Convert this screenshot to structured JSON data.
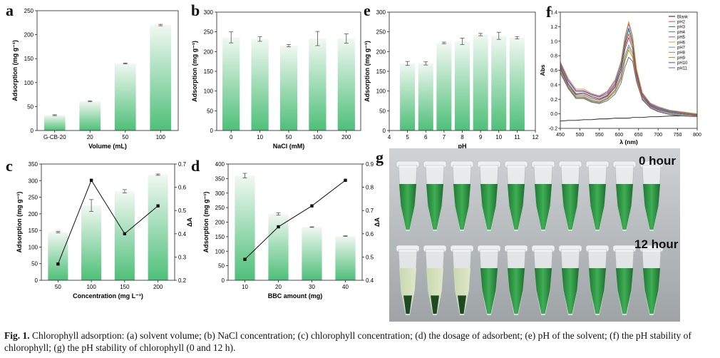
{
  "panels": {
    "a": {
      "letter": "a"
    },
    "b": {
      "letter": "b"
    },
    "c": {
      "letter": "c"
    },
    "d": {
      "letter": "d"
    },
    "e": {
      "letter": "e"
    },
    "f": {
      "letter": "f"
    },
    "g": {
      "letter": "g",
      "label_top": "0 hour",
      "label_bottom": "12 hour"
    }
  },
  "caption": {
    "prefix": "Fig. 1.",
    "text": "Chlorophyll adsorption: (a) solvent volume; (b) NaCl concentration; (c) chlorophyll concentration; (d) the dosage of adsorbent; (e) pH of the solvent; (f) the pH stability of chlorophyll; (g) the pH stability of chlorophyll (0 and 12 h)."
  },
  "colors": {
    "bar_top": "#f1f8f2",
    "bar_bottom": "#4fbf79",
    "line": "#111111"
  },
  "chart_data": [
    {
      "id": "a",
      "type": "bar",
      "categories": [
        "G-CB-20",
        "20",
        "50",
        "100"
      ],
      "values": [
        32,
        61,
        140,
        220
      ],
      "errors": [
        1,
        1,
        1,
        1.5
      ],
      "xlabel": "Volume (mL)",
      "ylabel": "Adsorption (mg g⁻¹)",
      "ylim": [
        0,
        250
      ],
      "yticks": [
        0,
        50,
        100,
        150,
        200,
        250
      ]
    },
    {
      "id": "b",
      "type": "bar",
      "categories": [
        "0",
        "10",
        "50",
        "100",
        "200"
      ],
      "values": [
        236,
        232,
        215,
        233,
        233
      ],
      "errors": [
        14,
        6,
        3,
        18,
        12
      ],
      "xlabel": "NaCl (mM)",
      "ylabel": "Adsorption (mg g⁻¹)",
      "ylim": [
        0,
        300
      ],
      "yticks": [
        0,
        50,
        100,
        150,
        200,
        250,
        300
      ]
    },
    {
      "id": "c",
      "type": "bar",
      "categories": [
        "50",
        "100",
        "150",
        "200"
      ],
      "values": [
        145,
        225,
        268,
        318
      ],
      "errors": [
        2,
        18,
        5,
        2
      ],
      "line_values": [
        0.27,
        0.63,
        0.4,
        0.52
      ],
      "xlabel": "Concentration (mg L⁻¹)",
      "ylabel": "Adsorption (mg g⁻¹)",
      "y2label": "ΔA",
      "ylim": [
        0,
        350
      ],
      "yticks": [
        0,
        50,
        100,
        150,
        200,
        250,
        300,
        350
      ],
      "y2lim": [
        0.2,
        0.7
      ],
      "y2ticks": [
        0.2,
        0.3,
        0.4,
        0.5,
        0.6,
        0.7
      ]
    },
    {
      "id": "d",
      "type": "bar",
      "categories": [
        "10",
        "20",
        "30",
        "40"
      ],
      "values": [
        360,
        228,
        183,
        152
      ],
      "errors": [
        8,
        4,
        1,
        1
      ],
      "line_values": [
        0.49,
        0.63,
        0.72,
        0.83
      ],
      "xlabel": "BBC amount (mg)",
      "ylabel": "Adsorption (mg g⁻¹)",
      "y2label": "ΔA",
      "ylim": [
        0,
        400
      ],
      "yticks": [
        0,
        50,
        100,
        150,
        200,
        250,
        300,
        350,
        400
      ],
      "y2lim": [
        0.4,
        0.9
      ],
      "y2ticks": [
        0.4,
        0.5,
        0.6,
        0.7,
        0.8,
        0.9
      ]
    },
    {
      "id": "e",
      "type": "bar",
      "x": [
        5,
        6,
        7,
        8,
        9,
        10,
        11
      ],
      "values": [
        170,
        170,
        222,
        226,
        243,
        240,
        235
      ],
      "errors": [
        5,
        4,
        2,
        8,
        3,
        9,
        3
      ],
      "xlabel": "pH",
      "ylabel": "Adsorption (mg g⁻¹)",
      "xlim": [
        4,
        12
      ],
      "xticks": [
        4,
        5,
        6,
        7,
        8,
        9,
        10,
        11,
        12
      ],
      "ylim": [
        0,
        300
      ],
      "yticks": [
        0,
        50,
        100,
        150,
        200,
        250,
        300
      ]
    },
    {
      "id": "f",
      "type": "line",
      "xlabel": "λ (nm)",
      "ylabel": "Abs",
      "xlim": [
        450,
        800
      ],
      "xticks": [
        450,
        500,
        550,
        600,
        650,
        700,
        750,
        800
      ],
      "ylim": [
        -0.2,
        1.4
      ],
      "yticks": [
        -0.2,
        0.0,
        0.2,
        0.4,
        0.6,
        0.8,
        1.0,
        1.2,
        1.4
      ],
      "legend_position": "top-right",
      "x": [
        450,
        470,
        490,
        510,
        530,
        550,
        570,
        590,
        605,
        615,
        625,
        635,
        645,
        660,
        680,
        700,
        730,
        760,
        800
      ],
      "series": [
        {
          "name": "Blank",
          "color": "#1a1a1a",
          "values": [
            -0.1,
            -0.09,
            -0.09,
            -0.08,
            -0.08,
            -0.07,
            -0.07,
            -0.06,
            -0.06,
            -0.06,
            -0.06,
            -0.05,
            -0.05,
            -0.05,
            -0.04,
            -0.04,
            -0.03,
            -0.03,
            -0.02
          ]
        },
        {
          "name": "pH2",
          "color": "#e8442e",
          "values": [
            0.66,
            0.42,
            0.28,
            0.29,
            0.24,
            0.21,
            0.26,
            0.4,
            0.62,
            0.92,
            1.1,
            0.95,
            0.55,
            0.25,
            0.12,
            0.07,
            0.03,
            0.01,
            -0.01
          ]
        },
        {
          "name": "pH3",
          "color": "#2e5fd6",
          "values": [
            0.68,
            0.45,
            0.31,
            0.31,
            0.26,
            0.23,
            0.28,
            0.42,
            0.66,
            0.98,
            1.18,
            1.0,
            0.58,
            0.27,
            0.13,
            0.08,
            0.04,
            0.02,
            0.0
          ]
        },
        {
          "name": "pH4",
          "color": "#21a05a",
          "values": [
            0.65,
            0.42,
            0.27,
            0.28,
            0.23,
            0.2,
            0.25,
            0.38,
            0.62,
            0.95,
            1.16,
            0.98,
            0.56,
            0.25,
            0.12,
            0.07,
            0.03,
            0.01,
            -0.01
          ]
        },
        {
          "name": "pH5",
          "color": "#b040c0",
          "values": [
            0.7,
            0.47,
            0.32,
            0.32,
            0.27,
            0.24,
            0.3,
            0.45,
            0.7,
            1.03,
            1.24,
            1.05,
            0.6,
            0.28,
            0.14,
            0.09,
            0.05,
            0.02,
            0.0
          ]
        },
        {
          "name": "pH6",
          "color": "#d8a020",
          "values": [
            0.72,
            0.49,
            0.34,
            0.34,
            0.28,
            0.25,
            0.31,
            0.47,
            0.72,
            1.06,
            1.27,
            1.07,
            0.62,
            0.29,
            0.15,
            0.1,
            0.05,
            0.03,
            0.0
          ]
        },
        {
          "name": "pH7",
          "color": "#3aa8d8",
          "values": [
            0.62,
            0.38,
            0.24,
            0.24,
            0.19,
            0.17,
            0.22,
            0.33,
            0.52,
            0.8,
            0.95,
            0.85,
            0.5,
            0.22,
            0.1,
            0.05,
            0.01,
            -0.01,
            -0.03
          ]
        },
        {
          "name": "pH8",
          "color": "#e07a1f",
          "values": [
            0.6,
            0.37,
            0.23,
            0.23,
            0.18,
            0.16,
            0.21,
            0.32,
            0.5,
            0.76,
            0.92,
            0.82,
            0.48,
            0.21,
            0.09,
            0.04,
            0.0,
            -0.02,
            -0.03
          ]
        },
        {
          "name": "pH9",
          "color": "#7aa020",
          "values": [
            0.58,
            0.36,
            0.22,
            0.22,
            0.17,
            0.15,
            0.2,
            0.3,
            0.47,
            0.72,
            0.88,
            0.78,
            0.46,
            0.2,
            0.08,
            0.03,
            -0.01,
            -0.02,
            -0.04
          ]
        },
        {
          "name": "pH10",
          "color": "#c02060",
          "values": [
            0.63,
            0.4,
            0.26,
            0.26,
            0.21,
            0.19,
            0.24,
            0.36,
            0.58,
            0.88,
            1.05,
            0.9,
            0.53,
            0.24,
            0.11,
            0.06,
            0.02,
            0.0,
            -0.02
          ]
        },
        {
          "name": "pH11",
          "color": "#6060a0",
          "values": [
            0.56,
            0.35,
            0.21,
            0.21,
            0.16,
            0.14,
            0.18,
            0.27,
            0.42,
            0.64,
            0.78,
            0.72,
            0.44,
            0.19,
            0.08,
            0.03,
            -0.01,
            -0.03,
            -0.04
          ]
        }
      ]
    }
  ]
}
